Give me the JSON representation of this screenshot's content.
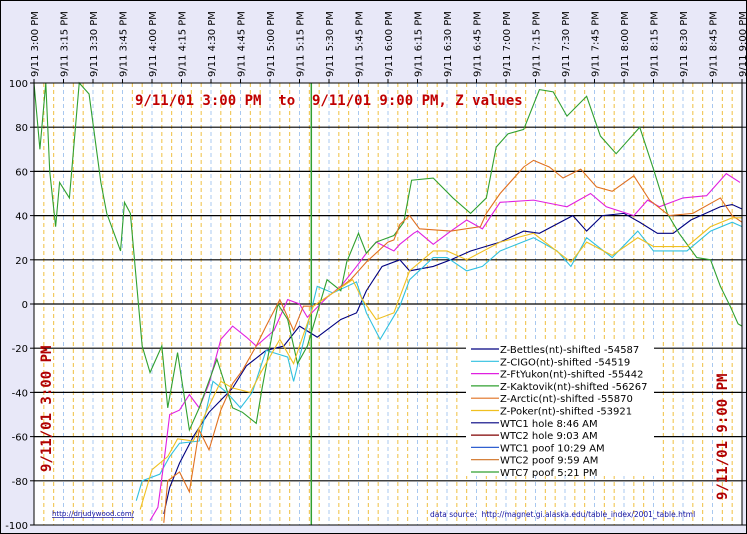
{
  "chart_data": {
    "type": "line",
    "title": "9/11/01 3:00 PM  to  9/11/01 9:00 PM, Z values",
    "x_unit": "minutes after 9/11/01 3:00 PM",
    "xlim": [
      0,
      360
    ],
    "ylim": [
      -100,
      100
    ],
    "yticks": [
      100,
      80,
      60,
      40,
      20,
      0,
      -20,
      -40,
      -60,
      -80,
      -100
    ],
    "xtick_labels": [
      "9/11 3:00 PM",
      "9/11 3:15 PM",
      "9/11 3:30 PM",
      "9/11 3:45 PM",
      "9/11 4:00 PM",
      "9/11 4:15 PM",
      "9/11 4:30 PM",
      "9/11 4:45 PM",
      "9/11 5:00 PM",
      "9/11 5:15 PM",
      "9/11 5:30 PM",
      "9/11 5:45 PM",
      "9/11 6:00 PM",
      "9/11 6:15 PM",
      "9/11 6:30 PM",
      "9/11 6:45 PM",
      "9/11 7:00 PM",
      "9/11 7:15 PM",
      "9/11 7:30 PM",
      "9/11 7:45 PM",
      "9/11 8:00 PM",
      "9/11 8:15 PM",
      "9/11 8:30 PM",
      "9/11 8:45 PM",
      "9/11 9:00 PM"
    ],
    "grid": true,
    "legend_position": "bottom-right",
    "left_label": "9/11/01 3:00 PM",
    "right_label": "9/11/01 9:00 PM",
    "series": [
      {
        "name": "Z-Bettles(nt)-shifted -54587",
        "color": "#000080",
        "points": [
          [
            66,
            -95
          ],
          [
            69,
            -83
          ],
          [
            74,
            -72
          ],
          [
            81,
            -60
          ],
          [
            89,
            -49
          ],
          [
            101,
            -38
          ],
          [
            108,
            -28
          ],
          [
            118,
            -21
          ],
          [
            127,
            -19
          ],
          [
            135,
            -10
          ],
          [
            144,
            -15
          ],
          [
            156,
            -7
          ],
          [
            164,
            -4
          ],
          [
            169,
            6
          ],
          [
            177,
            17
          ],
          [
            186,
            20
          ],
          [
            191,
            15
          ],
          [
            203,
            17
          ],
          [
            212,
            20
          ],
          [
            222,
            24
          ],
          [
            237,
            28
          ],
          [
            249,
            33
          ],
          [
            257,
            32
          ],
          [
            274,
            40
          ],
          [
            281,
            33
          ],
          [
            289,
            40
          ],
          [
            300,
            41
          ],
          [
            308,
            37
          ],
          [
            317,
            32
          ],
          [
            325,
            32
          ],
          [
            334,
            38
          ],
          [
            349,
            44
          ],
          [
            355,
            45
          ],
          [
            360,
            43
          ]
        ]
      },
      {
        "name": "Z-CIGO(nt)-shifted -54519",
        "color": "#30c0e0",
        "points": [
          [
            52,
            -89
          ],
          [
            55,
            -80
          ],
          [
            64,
            -77
          ],
          [
            69,
            -69
          ],
          [
            74,
            -63
          ],
          [
            84,
            -62
          ],
          [
            91,
            -35
          ],
          [
            98,
            -40
          ],
          [
            105,
            -47
          ],
          [
            111,
            -40
          ],
          [
            118,
            -21
          ],
          [
            129,
            -24
          ],
          [
            132,
            -35
          ],
          [
            139,
            -10
          ],
          [
            144,
            8
          ],
          [
            152,
            5
          ],
          [
            164,
            10
          ],
          [
            169,
            -4
          ],
          [
            176,
            -16
          ],
          [
            186,
            -1
          ],
          [
            191,
            11
          ],
          [
            203,
            21
          ],
          [
            210,
            21
          ],
          [
            220,
            15
          ],
          [
            228,
            17
          ],
          [
            237,
            24
          ],
          [
            254,
            30
          ],
          [
            266,
            24
          ],
          [
            273,
            17
          ],
          [
            281,
            30
          ],
          [
            294,
            21
          ],
          [
            307,
            33
          ],
          [
            315,
            24
          ],
          [
            332,
            24
          ],
          [
            344,
            33
          ],
          [
            355,
            37
          ],
          [
            360,
            35
          ]
        ]
      },
      {
        "name": "Z-FtYukon(nt)-shifted -55442",
        "color": "#e020e0",
        "points": [
          [
            59,
            -98
          ],
          [
            63,
            -92
          ],
          [
            66,
            -72
          ],
          [
            69,
            -50
          ],
          [
            74,
            -48
          ],
          [
            79,
            -41
          ],
          [
            84,
            -47
          ],
          [
            89,
            -36
          ],
          [
            95,
            -16
          ],
          [
            101,
            -10
          ],
          [
            108,
            -15
          ],
          [
            113,
            -19
          ],
          [
            122,
            -12
          ],
          [
            129,
            2
          ],
          [
            135,
            0
          ],
          [
            139,
            -6
          ],
          [
            149,
            3
          ],
          [
            156,
            8
          ],
          [
            164,
            17
          ],
          [
            169,
            23
          ],
          [
            174,
            28
          ],
          [
            183,
            24
          ],
          [
            186,
            27
          ],
          [
            193,
            32
          ],
          [
            195,
            33
          ],
          [
            203,
            27
          ],
          [
            212,
            33
          ],
          [
            220,
            38
          ],
          [
            228,
            34
          ],
          [
            237,
            46
          ],
          [
            254,
            47
          ],
          [
            271,
            44
          ],
          [
            283,
            50
          ],
          [
            291,
            44
          ],
          [
            305,
            40
          ],
          [
            312,
            47
          ],
          [
            318,
            44
          ],
          [
            330,
            48
          ],
          [
            342,
            49
          ],
          [
            352,
            59
          ],
          [
            359,
            55
          ]
        ]
      },
      {
        "name": "Z-Kaktovik(nt)-shifted -56267",
        "color": "#30a030",
        "points": [
          [
            0,
            100
          ],
          [
            3,
            70
          ],
          [
            6,
            100
          ],
          [
            8,
            60
          ],
          [
            11,
            35
          ],
          [
            13,
            55
          ],
          [
            18,
            48
          ],
          [
            23,
            100
          ],
          [
            28,
            95
          ],
          [
            34,
            55
          ],
          [
            37,
            41
          ],
          [
            44,
            24
          ],
          [
            46,
            46
          ],
          [
            49,
            41
          ],
          [
            55,
            -19
          ],
          [
            59,
            -31
          ],
          [
            65,
            -19
          ],
          [
            68,
            -47
          ],
          [
            73,
            -22
          ],
          [
            79,
            -57
          ],
          [
            84,
            -47
          ],
          [
            93,
            -25
          ],
          [
            101,
            -47
          ],
          [
            106,
            -49
          ],
          [
            113,
            -54
          ],
          [
            116,
            -38
          ],
          [
            124,
            0
          ],
          [
            129,
            -7
          ],
          [
            134,
            -27
          ],
          [
            139,
            -19
          ],
          [
            144,
            -4
          ],
          [
            149,
            11
          ],
          [
            156,
            6
          ],
          [
            159,
            19
          ],
          [
            165,
            32
          ],
          [
            169,
            23
          ],
          [
            174,
            28
          ],
          [
            183,
            31
          ],
          [
            188,
            37
          ],
          [
            192,
            56
          ],
          [
            203,
            57
          ],
          [
            213,
            48
          ],
          [
            222,
            41
          ],
          [
            230,
            48
          ],
          [
            235,
            71
          ],
          [
            241,
            77
          ],
          [
            249,
            79
          ],
          [
            257,
            97
          ],
          [
            264,
            96
          ],
          [
            271,
            85
          ],
          [
            281,
            94
          ],
          [
            288,
            76
          ],
          [
            296,
            68
          ],
          [
            308,
            80
          ],
          [
            315,
            61
          ],
          [
            322,
            41
          ],
          [
            328,
            32
          ],
          [
            337,
            21
          ],
          [
            344,
            20
          ],
          [
            349,
            8
          ],
          [
            354,
            -1
          ],
          [
            358,
            -9
          ],
          [
            360,
            -10
          ]
        ]
      },
      {
        "name": "Z-Arctic(nt)-shifted -55870",
        "color": "#e07020",
        "points": [
          [
            66,
            -99
          ],
          [
            68,
            -80
          ],
          [
            74,
            -76
          ],
          [
            79,
            -85
          ],
          [
            84,
            -57
          ],
          [
            89,
            -66
          ],
          [
            95,
            -48
          ],
          [
            101,
            -36
          ],
          [
            106,
            -30
          ],
          [
            113,
            -19
          ],
          [
            118,
            -10
          ],
          [
            125,
            2
          ],
          [
            132,
            -12
          ],
          [
            137,
            -1
          ],
          [
            142,
            -1
          ],
          [
            152,
            5
          ],
          [
            161,
            11
          ],
          [
            169,
            19
          ],
          [
            180,
            28
          ],
          [
            183,
            29
          ],
          [
            186,
            36
          ],
          [
            191,
            40
          ],
          [
            196,
            34
          ],
          [
            212,
            33
          ],
          [
            227,
            35
          ],
          [
            230,
            41
          ],
          [
            237,
            50
          ],
          [
            249,
            62
          ],
          [
            254,
            65
          ],
          [
            262,
            62
          ],
          [
            269,
            57
          ],
          [
            278,
            61
          ],
          [
            286,
            53
          ],
          [
            294,
            51
          ],
          [
            305,
            58
          ],
          [
            313,
            47
          ],
          [
            323,
            40
          ],
          [
            335,
            41
          ],
          [
            349,
            48
          ],
          [
            355,
            40
          ],
          [
            360,
            37
          ]
        ]
      },
      {
        "name": "Z-Poker(nt)-shifted -53921",
        "color": "#f0c020",
        "points": [
          [
            54,
            -93
          ],
          [
            60,
            -75
          ],
          [
            68,
            -69
          ],
          [
            73,
            -61
          ],
          [
            81,
            -62
          ],
          [
            88,
            -48
          ],
          [
            95,
            -35
          ],
          [
            101,
            -38
          ],
          [
            110,
            -40
          ],
          [
            116,
            -30
          ],
          [
            125,
            -16
          ],
          [
            132,
            -27
          ],
          [
            135,
            -19
          ],
          [
            142,
            -1
          ],
          [
            152,
            5
          ],
          [
            162,
            11
          ],
          [
            167,
            2
          ],
          [
            174,
            -7
          ],
          [
            183,
            -4
          ],
          [
            191,
            15
          ],
          [
            203,
            24
          ],
          [
            210,
            24
          ],
          [
            220,
            20
          ],
          [
            237,
            28
          ],
          [
            254,
            32
          ],
          [
            273,
            19
          ],
          [
            281,
            28
          ],
          [
            294,
            22
          ],
          [
            307,
            30
          ],
          [
            315,
            26
          ],
          [
            332,
            26
          ],
          [
            344,
            35
          ],
          [
            355,
            39
          ],
          [
            360,
            39
          ]
        ]
      }
    ],
    "events": [
      {
        "name": "WTC1 hole 8:46 AM",
        "color": "#000080",
        "minute": null
      },
      {
        "name": "WTC2 hole 9:03 AM",
        "color": "#800000",
        "minute": null
      },
      {
        "name": "WTC1 poof 10:29 AM",
        "color": "#3060d0",
        "minute": null
      },
      {
        "name": "WTC2 poof 9:59 AM",
        "color": "#d07020",
        "minute": null
      },
      {
        "name": "WTC7 poof 5:21 PM",
        "color": "#30a030",
        "minute": 141
      }
    ]
  },
  "footer": {
    "link": "http://drjudywood.com/",
    "source": "data source:  http://magnet.gi.alaska.edu/table_index/2001_table.html"
  }
}
